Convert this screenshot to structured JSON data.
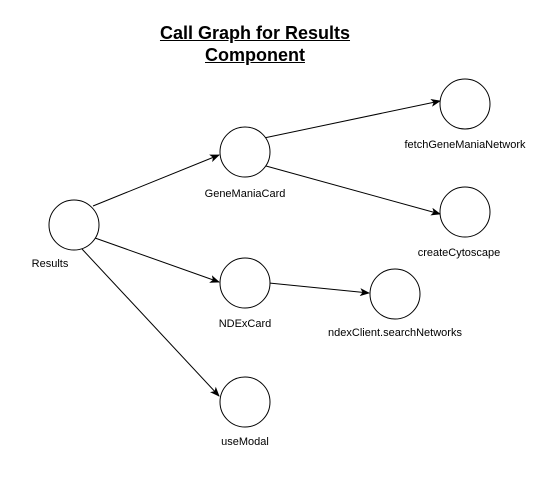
{
  "title": {
    "line1": "Call Graph for Results",
    "line2": "Component"
  },
  "nodes": {
    "results": "Results",
    "genemania_card": "GeneManiaCard",
    "fetch_genemania_network": "fetchGeneManiaNetwork",
    "create_cytoscape": "createCytoscape",
    "ndex_card": "NDExCard",
    "ndex_client_search": "ndexClient.searchNetworks",
    "use_modal": "useModal"
  },
  "edges": [
    {
      "from": "results",
      "to": "genemania_card"
    },
    {
      "from": "results",
      "to": "ndex_card"
    },
    {
      "from": "results",
      "to": "use_modal"
    },
    {
      "from": "genemania_card",
      "to": "fetch_genemania_network"
    },
    {
      "from": "genemania_card",
      "to": "create_cytoscape"
    },
    {
      "from": "ndex_card",
      "to": "ndex_client_search"
    }
  ]
}
